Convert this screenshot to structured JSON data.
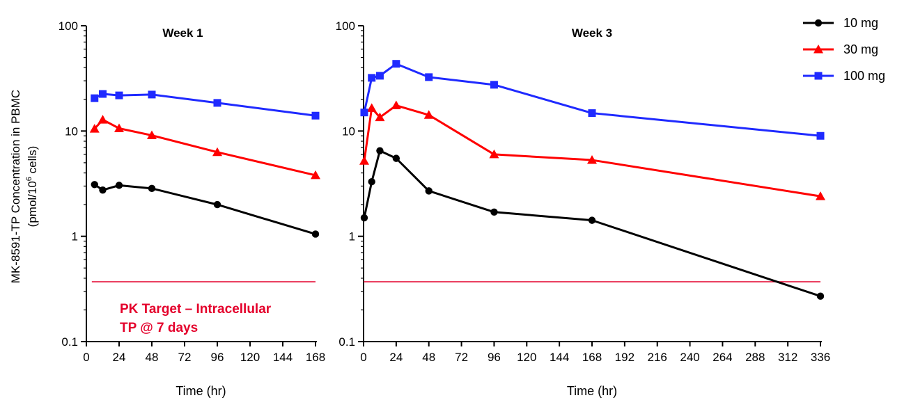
{
  "y_axis_title": {
    "line1": "MK-8591-TP Concentration in PBMC",
    "line2_prefix": "(pmol/10",
    "line2_sup": "6",
    "line2_suffix": " cells)"
  },
  "legend": [
    {
      "label": "10 mg",
      "color": "#000000",
      "marker": "circle"
    },
    {
      "label": "30 mg",
      "color": "#ff0000",
      "marker": "triangle"
    },
    {
      "label": "100 mg",
      "color": "#1f2aff",
      "marker": "square"
    }
  ],
  "annotation": {
    "line1": "PK Target – Intracellular",
    "line2": "TP @ 7 days",
    "color": "#e4002b"
  },
  "chart_data": [
    {
      "type": "line",
      "title": "Week 1",
      "xlabel": "Time (hr)",
      "ylabel": "MK-8591-TP Concentration in PBMC (pmol/10^6 cells)",
      "xlim": [
        0,
        168
      ],
      "xticks": [
        0,
        24,
        48,
        72,
        96,
        120,
        144,
        168
      ],
      "ylim": [
        0.1,
        100
      ],
      "yscale": "log",
      "yticks": [
        0.1,
        1,
        10,
        100
      ],
      "ytick_labels": [
        "0.1",
        "1",
        "10",
        "100"
      ],
      "target_line": {
        "y": 0.37,
        "x_range": [
          4,
          168
        ],
        "color": "#e4002b"
      },
      "series": [
        {
          "name": "10 mg",
          "x": [
            6,
            12,
            24,
            48,
            96,
            168
          ],
          "y": [
            3.1,
            2.75,
            3.05,
            2.85,
            2.0,
            1.05
          ]
        },
        {
          "name": "30 mg",
          "x": [
            6,
            12,
            24,
            48,
            96,
            168
          ],
          "y": [
            10.5,
            12.8,
            10.6,
            9.1,
            6.3,
            3.8
          ]
        },
        {
          "name": "100 mg",
          "x": [
            6,
            12,
            24,
            48,
            96,
            168
          ],
          "y": [
            20.5,
            22.5,
            21.8,
            22.2,
            18.5,
            14.0
          ]
        }
      ]
    },
    {
      "type": "line",
      "title": "Week 3",
      "xlabel": "Time (hr)",
      "xlim": [
        0,
        336
      ],
      "xticks": [
        0,
        24,
        48,
        72,
        96,
        120,
        144,
        168,
        192,
        216,
        240,
        264,
        288,
        312,
        336
      ],
      "ylim": [
        0.1,
        100
      ],
      "yscale": "log",
      "yticks": [
        0.1,
        1,
        10,
        100
      ],
      "ytick_labels": [
        "0.1",
        "1",
        "10",
        "100"
      ],
      "target_line": {
        "y": 0.37,
        "x_range": [
          0,
          336
        ],
        "color": "#e4002b"
      },
      "series": [
        {
          "name": "10 mg",
          "x": [
            0.5,
            6,
            12,
            24,
            48,
            96,
            168,
            336
          ],
          "y": [
            1.5,
            3.3,
            6.5,
            5.5,
            2.7,
            1.7,
            1.42,
            0.27
          ]
        },
        {
          "name": "30 mg",
          "x": [
            0.5,
            6,
            12,
            24,
            48,
            96,
            168,
            336
          ],
          "y": [
            5.2,
            16.5,
            13.5,
            17.5,
            14.2,
            6.0,
            5.3,
            2.4
          ]
        },
        {
          "name": "100 mg",
          "x": [
            0.5,
            6,
            12,
            24,
            48,
            96,
            168,
            336
          ],
          "y": [
            15.0,
            32.0,
            33.5,
            43.5,
            32.5,
            27.5,
            14.8,
            9.0
          ]
        }
      ]
    }
  ]
}
